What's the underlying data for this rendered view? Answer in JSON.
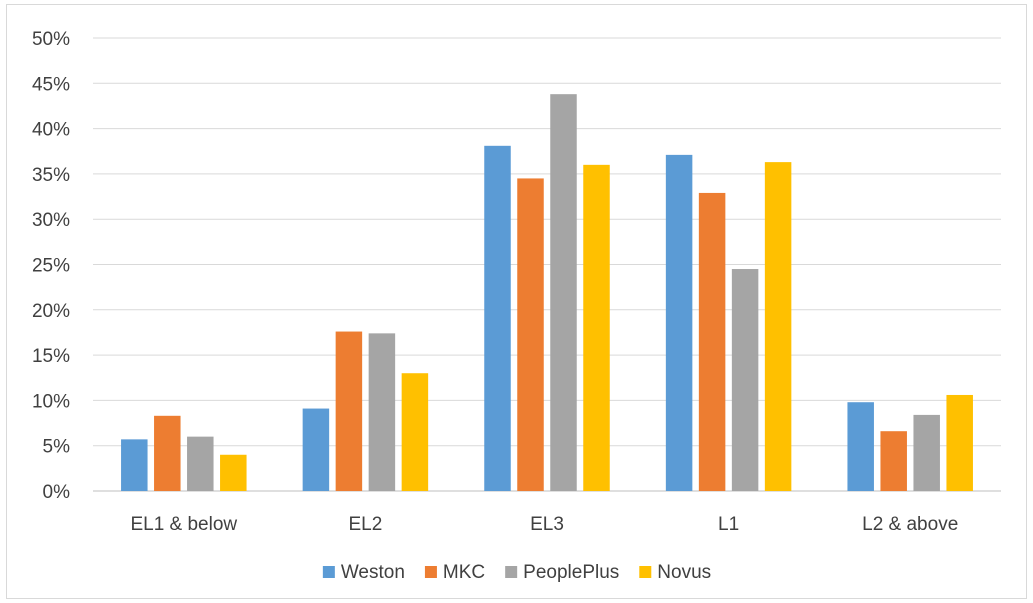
{
  "chart_data": {
    "type": "bar",
    "title": "",
    "xlabel": "",
    "ylabel": "",
    "categories": [
      "EL1 & below",
      "EL2",
      "EL3",
      "L1",
      "L2 & above"
    ],
    "ylim": [
      0,
      50
    ],
    "y_ticks": [
      "0%",
      "5%",
      "10%",
      "15%",
      "20%",
      "25%",
      "30%",
      "35%",
      "40%",
      "45%",
      "50%"
    ],
    "grid": true,
    "legend_position": "bottom",
    "series": [
      {
        "name": "Weston",
        "color": "#5b9bd5",
        "values": [
          5.7,
          9.1,
          38.1,
          37.1,
          9.8
        ]
      },
      {
        "name": "MKC",
        "color": "#ed7d31",
        "values": [
          8.3,
          17.6,
          34.5,
          32.9,
          6.6
        ]
      },
      {
        "name": "PeoplePlus",
        "color": "#a5a5a5",
        "values": [
          6.0,
          17.4,
          43.8,
          24.5,
          8.4
        ]
      },
      {
        "name": "Novus",
        "color": "#ffc000",
        "values": [
          4.0,
          13.0,
          36.0,
          36.3,
          10.6
        ]
      }
    ]
  }
}
